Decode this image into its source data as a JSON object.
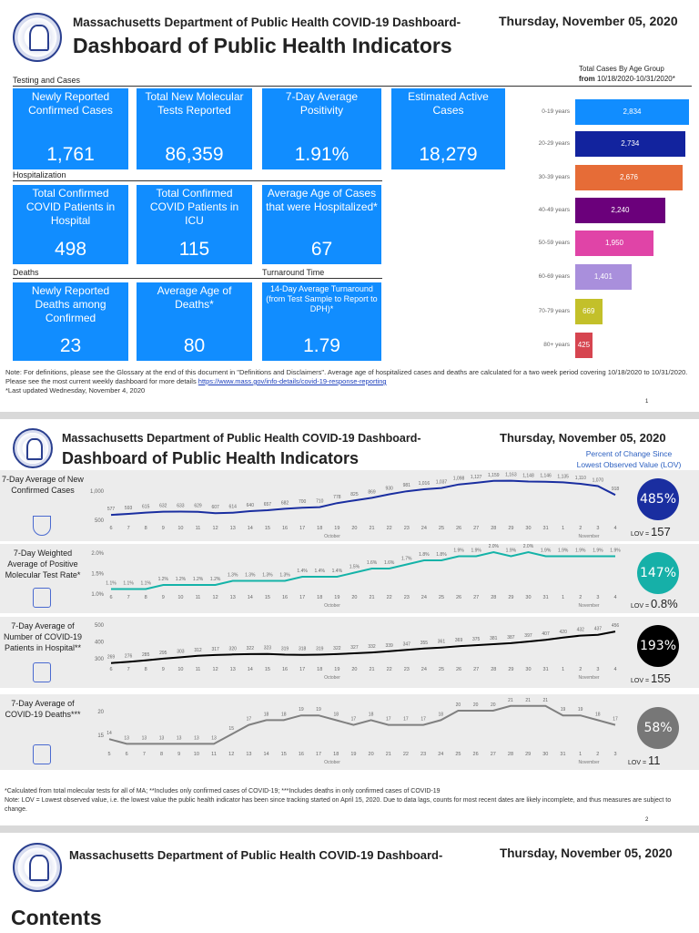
{
  "header": {
    "title_line1": "Massachusetts Department of Public Health COVID-19 Dashboard-",
    "title_line2": "Dashboard of Public Health Indicators",
    "date": "Thursday, November 05, 2020"
  },
  "page1": {
    "sections": {
      "testing": "Testing and Cases",
      "hospitalization": "Hospitalization",
      "deaths": "Deaths",
      "turnaround": "Turnaround Time"
    },
    "tiles": [
      {
        "label": "Newly Reported Confirmed Cases",
        "value": "1,761"
      },
      {
        "label": "Total New Molecular Tests Reported",
        "value": "86,359"
      },
      {
        "label": "7-Day Average Positivity",
        "value": "1.91%"
      },
      {
        "label": "Estimated Active Cases",
        "value": "18,279"
      },
      {
        "label": "Total Confirmed COVID Patients in Hospital",
        "value": "498"
      },
      {
        "label": "Total Confirmed COVID Patients in ICU",
        "value": "115"
      },
      {
        "label": "Average Age of Cases that were Hospitalized*",
        "value": "67"
      },
      {
        "label": "Newly Reported Deaths among Confirmed",
        "value": "23"
      },
      {
        "label": "Average Age of Deaths*",
        "value": "80"
      },
      {
        "label": "14-Day Average Turnaround (from Test Sample to Report to DPH)*",
        "value": "1.79"
      }
    ],
    "tile_color": "#118dff",
    "age_chart": {
      "title": "Total Cases By Age Group",
      "subtitle_from": "from",
      "subtitle_range": "10/18/2020-10/31/2020*",
      "groups": [
        {
          "label": "0-19 years",
          "value": 2834,
          "text": "2,834",
          "color": "#118dff"
        },
        {
          "label": "20-29 years",
          "value": 2734,
          "text": "2,734",
          "color": "#12239e"
        },
        {
          "label": "30-39 years",
          "value": 2676,
          "text": "2,676",
          "color": "#e66c37"
        },
        {
          "label": "40-49 years",
          "value": 2240,
          "text": "2,240",
          "color": "#6b007b"
        },
        {
          "label": "50-59 years",
          "value": 1950,
          "text": "1,950",
          "color": "#e044a7"
        },
        {
          "label": "60-69 years",
          "value": 1401,
          "text": "1,401",
          "color": "#a98fdc"
        },
        {
          "label": "70-79 years",
          "value": 669,
          "text": "669",
          "color": "#c3c02a"
        },
        {
          "label": "80+ years",
          "value": 425,
          "text": "425",
          "color": "#d64550"
        }
      ]
    },
    "note": "Note: For definitions, please see the Glossary at the end of this document in \"Definitions and Disclaimers\". Average age of hospitalized cases and deaths are calculated for a two week period covering 10/18/2020 to 10/31/2020. Please see the most current weekly dashboard for more details ",
    "note_link": "https://www.mass.gov/info-details/covid-19-response-reporting",
    "last_updated": "*Last updated Wednesday, November 4, 2020",
    "page_number": "1"
  },
  "page2": {
    "lov_header_1": "Percent of Change Since",
    "lov_header_2": "Lowest Observed Value (LOV)",
    "lov_prefix": "LOV =",
    "month_oct": "October",
    "month_nov": "November",
    "chart_data": [
      {
        "type": "line",
        "label": "7-Day Average of New Confirmed Cases",
        "icon": "stethoscope-icon",
        "color": "#1a2ea0",
        "x": [
          "6",
          "7",
          "8",
          "9",
          "10",
          "11",
          "12",
          "13",
          "14",
          "15",
          "16",
          "17",
          "18",
          "19",
          "20",
          "21",
          "22",
          "23",
          "24",
          "25",
          "26",
          "27",
          "28",
          "29",
          "30",
          "31",
          "1",
          "2",
          "3",
          "4"
        ],
        "values": [
          577,
          593,
          615,
          632,
          633,
          629,
          607,
          614,
          640,
          657,
          682,
          700,
          710,
          778,
          825,
          869,
          930,
          981,
          1016,
          1037,
          1098,
          1127,
          1159,
          1163,
          1148,
          1146,
          1135,
          1110,
          1070,
          918
        ],
        "labels": [
          "577",
          "593",
          "615",
          "632",
          "633",
          "629",
          "607",
          "614",
          "640",
          "657",
          "682",
          "700",
          "710",
          "778",
          "825",
          "869",
          "930",
          "981",
          "1,016",
          "1,037",
          "1,098",
          "1,127",
          "1,159",
          "1,163",
          "1,148",
          "1,146",
          "1,135",
          "1,110",
          "1,070",
          "918"
        ],
        "yticks": [
          "1,000",
          "500"
        ],
        "ytick_values": [
          1000,
          500
        ],
        "pct_change": "485%",
        "lov": "157"
      },
      {
        "type": "line",
        "label": "7-Day Weighted Average of Positive Molecular Test Rate*",
        "icon": "clipboard-icon",
        "color": "#14b3a8",
        "x": [
          "6",
          "7",
          "8",
          "9",
          "10",
          "11",
          "12",
          "13",
          "14",
          "15",
          "16",
          "17",
          "18",
          "19",
          "20",
          "21",
          "22",
          "23",
          "24",
          "25",
          "26",
          "27",
          "28",
          "29",
          "30",
          "31",
          "1",
          "2",
          "3",
          "4"
        ],
        "values": [
          1.1,
          1.1,
          1.1,
          1.2,
          1.2,
          1.2,
          1.2,
          1.3,
          1.3,
          1.3,
          1.3,
          1.4,
          1.4,
          1.4,
          1.5,
          1.6,
          1.6,
          1.7,
          1.8,
          1.8,
          1.9,
          1.9,
          2.0,
          1.9,
          2.0,
          1.9,
          1.9,
          1.9,
          1.9,
          1.9
        ],
        "labels": [
          "1.1%",
          "1.1%",
          "1.1%",
          "1.2%",
          "1.2%",
          "1.2%",
          "1.2%",
          "1.3%",
          "1.3%",
          "1.3%",
          "1.3%",
          "1.4%",
          "1.4%",
          "1.4%",
          "1.5%",
          "1.6%",
          "1.6%",
          "1.7%",
          "1.8%",
          "1.8%",
          "1.9%",
          "1.9%",
          "2.0%",
          "1.9%",
          "2.0%",
          "1.9%",
          "1.9%",
          "1.9%",
          "1.9%",
          "1.9%"
        ],
        "yticks": [
          "2.0%",
          "1.5%",
          "1.0%"
        ],
        "ytick_values": [
          2.0,
          1.5,
          1.0
        ],
        "pct_change": "147%",
        "lov": "0.8%"
      },
      {
        "type": "line",
        "label": "7-Day Average of Number of COVID-19 Patients in Hospital**",
        "icon": "hospital-icon",
        "color": "#000000",
        "x": [
          "6",
          "7",
          "8",
          "9",
          "10",
          "11",
          "12",
          "13",
          "14",
          "15",
          "16",
          "17",
          "18",
          "19",
          "20",
          "21",
          "22",
          "23",
          "24",
          "25",
          "26",
          "27",
          "28",
          "29",
          "30",
          "31",
          "1",
          "2",
          "3",
          "4"
        ],
        "values": [
          269,
          276,
          285,
          295,
          303,
          312,
          317,
          320,
          322,
          323,
          319,
          318,
          319,
          322,
          327,
          332,
          339,
          347,
          355,
          361,
          369,
          375,
          381,
          387,
          397,
          407,
          420,
          432,
          437,
          456
        ],
        "labels": [
          "269",
          "276",
          "285",
          "295",
          "303",
          "312",
          "317",
          "320",
          "322",
          "323",
          "319",
          "318",
          "319",
          "322",
          "327",
          "332",
          "339",
          "347",
          "355",
          "361",
          "369",
          "375",
          "381",
          "387",
          "397",
          "407",
          "420",
          "432",
          "437",
          "456"
        ],
        "yticks": [
          "500",
          "400",
          "300"
        ],
        "ytick_values": [
          500,
          400,
          300
        ],
        "pct_change": "193%",
        "lov": "155"
      },
      {
        "type": "line",
        "label": "7-Day Average of COVID-19 Deaths***",
        "icon": "cross-icon",
        "color": "#808080",
        "x": [
          "5",
          "6",
          "7",
          "8",
          "9",
          "10",
          "11",
          "12",
          "13",
          "14",
          "15",
          "16",
          "17",
          "18",
          "19",
          "20",
          "21",
          "22",
          "23",
          "24",
          "25",
          "26",
          "27",
          "28",
          "29",
          "30",
          "31",
          "1",
          "2",
          "3"
        ],
        "values": [
          14,
          13,
          13,
          13,
          13,
          13,
          13,
          15,
          17,
          18,
          18,
          19,
          19,
          18,
          17,
          18,
          17,
          17,
          17,
          18,
          20,
          20,
          20,
          21,
          21,
          21,
          19,
          19,
          18,
          17
        ],
        "labels": [
          "14",
          "13",
          "13",
          "13",
          "13",
          "13",
          "13",
          "15",
          "17",
          "18",
          "18",
          "19",
          "19",
          "18",
          "17",
          "18",
          "17",
          "17",
          "17",
          "18",
          "20",
          "20",
          "20",
          "21",
          "21",
          "21",
          "19",
          "19",
          "18",
          "17"
        ],
        "yticks": [
          "20",
          "15"
        ],
        "ytick_values": [
          20,
          15
        ],
        "pct_change": "58%",
        "lov": "11"
      }
    ],
    "circle_colors": [
      "#1a2ea0",
      "#16b0a8",
      "#000000",
      "#777777"
    ],
    "footnote": "*Calculated from total molecular tests for all of MA; **Includes only confirmed cases of COVID-19; ***Includes deaths in only confirmed cases of COVID-19",
    "lov_note": "Note:  LOV = Lowest observed value, i.e. the lowest value the public health indicator has been since tracking started on April 15, 2020. Due to data lags, counts for most recent dates are likely incomplete, and thus measures are subject to change.",
    "page_number": "2"
  },
  "page3": {
    "heading": "Contents"
  }
}
